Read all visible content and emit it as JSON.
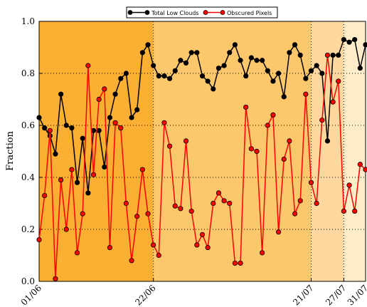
{
  "chart_data": {
    "type": "line",
    "y_label": "Fraction",
    "categories": [
      "01/06",
      null,
      null,
      null,
      null,
      null,
      null,
      null,
      null,
      null,
      null,
      null,
      null,
      null,
      null,
      null,
      null,
      null,
      null,
      null,
      null,
      "22/06",
      null,
      null,
      null,
      null,
      null,
      null,
      null,
      null,
      null,
      null,
      null,
      null,
      null,
      null,
      null,
      null,
      null,
      null,
      null,
      null,
      null,
      null,
      null,
      null,
      null,
      null,
      null,
      null,
      "21/07",
      null,
      null,
      null,
      null,
      null,
      "27/07",
      null,
      null,
      null,
      "31/07"
    ],
    "series": [
      {
        "name": "Total Low Clouds",
        "color": "#000000",
        "values": [
          0.63,
          0.59,
          0.56,
          0.49,
          0.72,
          0.6,
          0.59,
          0.38,
          0.55,
          0.34,
          0.58,
          0.58,
          0.44,
          0.63,
          0.72,
          0.78,
          0.8,
          0.63,
          0.66,
          0.88,
          0.91,
          0.83,
          0.79,
          0.79,
          0.78,
          0.81,
          0.85,
          0.84,
          0.88,
          0.88,
          0.79,
          0.77,
          0.74,
          0.82,
          0.83,
          0.88,
          0.91,
          0.85,
          0.79,
          0.86,
          0.85,
          0.85,
          0.81,
          0.77,
          0.8,
          0.71,
          0.88,
          0.91,
          0.87,
          0.78,
          0.81,
          0.83,
          0.8,
          0.54,
          0.87,
          0.87,
          0.93,
          0.92,
          0.93,
          0.82,
          0.91
        ]
      },
      {
        "name": "Obscured Pixels",
        "color": "#ff0000",
        "values": [
          0.16,
          0.33,
          0.58,
          0.01,
          0.39,
          0.2,
          0.43,
          0.11,
          0.26,
          0.83,
          0.41,
          0.7,
          0.74,
          0.13,
          0.61,
          0.59,
          0.3,
          0.08,
          0.25,
          0.43,
          0.26,
          0.14,
          0.1,
          0.61,
          0.52,
          0.29,
          0.28,
          0.54,
          0.27,
          0.14,
          0.18,
          0.13,
          0.3,
          0.34,
          0.31,
          0.3,
          0.07,
          0.07,
          0.67,
          0.51,
          0.5,
          0.11,
          0.6,
          0.64,
          0.19,
          0.47,
          0.54,
          0.26,
          0.31,
          0.72,
          0.38,
          0.3,
          0.62,
          0.87,
          0.69,
          0.77,
          0.27,
          0.37,
          0.27,
          0.45,
          0.43
        ]
      }
    ],
    "ylim": [
      0,
      1
    ],
    "yticks": [
      {
        "value": 0,
        "label": "0.0"
      },
      {
        "value": 0.2,
        "label": "0.2"
      },
      {
        "value": 0.4,
        "label": "0.4"
      },
      {
        "value": 0.6,
        "label": "0.6"
      },
      {
        "value": 0.8,
        "label": "0.8"
      },
      {
        "value": 1,
        "label": "1.0"
      }
    ],
    "grid": true,
    "legend": "top",
    "band_colors": [
      "#fbb034",
      "#fdc86c",
      "#fed89e",
      "#ffecc9"
    ]
  }
}
